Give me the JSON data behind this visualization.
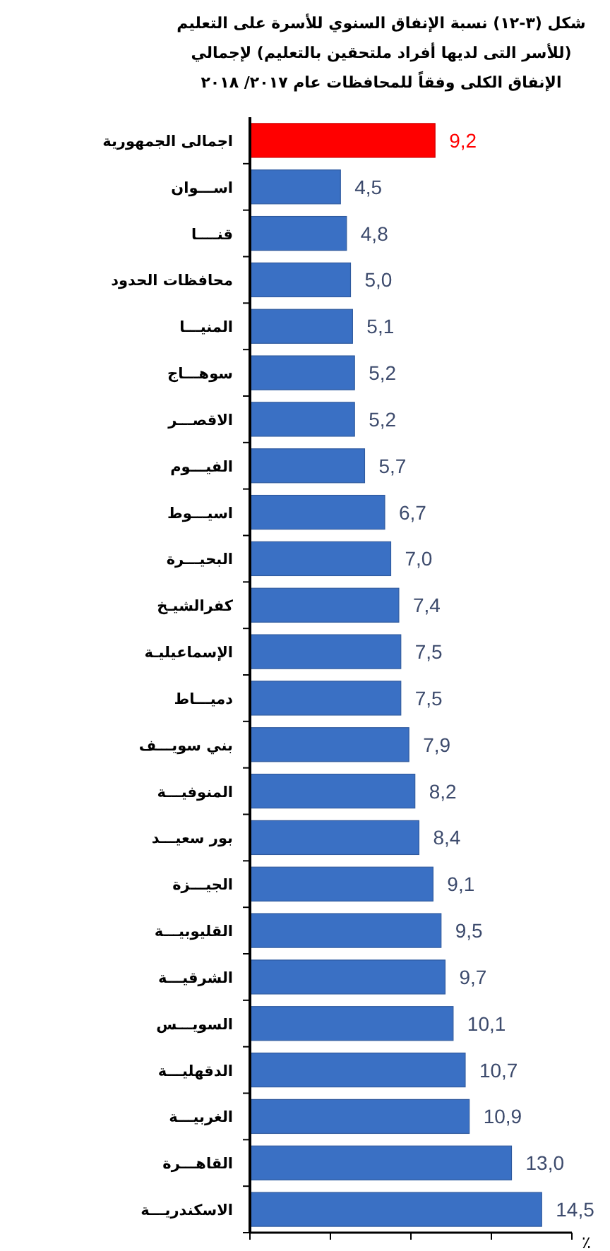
{
  "chart_data": {
    "type": "bar",
    "orientation": "horizontal",
    "title": "شكل (٣-١٢) نسبة الإنفاق السنوي للأسرة على التعليم\n(للأسر التى لديها أفراد ملتحقين بالتعليم) لإجمالي\nالإنفاق الكلى وفقاً للمحافظات  عام ٢٠١٧/ ٢٠١٨",
    "categories": [
      "اجمالى الجمهورية",
      "اســـوان",
      "قنــــا",
      "محافظات الحدود",
      "المنيـــا",
      "سوهـــاج",
      "الاقصـــر",
      "الفيـــوم",
      "اسيـــوط",
      "البحيـــرة",
      "كفرالشيـخ",
      "الإسماعيليـة",
      "دميـــاط",
      "بني سويـــف",
      "المنوفيـــة",
      "بور سعيـــد",
      "الجيـــزة",
      "القليوبيـــة",
      "الشرقيـــة",
      "السويـــس",
      "الدقهليـــة",
      "الغربيـــة",
      "القاهـــرة",
      "الاسكندريـــة"
    ],
    "values": [
      9.2,
      4.5,
      4.8,
      5.0,
      5.1,
      5.2,
      5.2,
      5.7,
      6.7,
      7.0,
      7.4,
      7.5,
      7.5,
      7.9,
      8.2,
      8.4,
      9.1,
      9.5,
      9.7,
      10.1,
      10.7,
      10.9,
      13.0,
      14.5
    ],
    "value_labels": [
      "9,2",
      "4,5",
      "4,8",
      "5,0",
      "5,1",
      "5,2",
      "5,2",
      "5,7",
      "6,7",
      "7,0",
      "7,4",
      "7,5",
      "7,5",
      "7,9",
      "8,2",
      "8,4",
      "9,1",
      "9,5",
      "9,7",
      "10,1",
      "10,7",
      "10,9",
      "13,0",
      "14,5"
    ],
    "colors": [
      "#ff0000",
      "#3a70c4",
      "#3a70c4",
      "#3a70c4",
      "#3a70c4",
      "#3a70c4",
      "#3a70c4",
      "#3a70c4",
      "#3a70c4",
      "#3a70c4",
      "#3a70c4",
      "#3a70c4",
      "#3a70c4",
      "#3a70c4",
      "#3a70c4",
      "#3a70c4",
      "#3a70c4",
      "#3a70c4",
      "#3a70c4",
      "#3a70c4",
      "#3a70c4",
      "#3a70c4",
      "#3a70c4",
      "#3a70c4"
    ],
    "xlim": [
      0,
      16
    ],
    "xticks": [
      {
        "value": 0,
        "label": null
      },
      {
        "value": 4,
        "label": null
      },
      {
        "value": 8,
        "label": null
      },
      {
        "value": 12,
        "label": null
      },
      {
        "value": 16,
        "label": null
      }
    ],
    "xlabel": "٪",
    "tick_labels": "y"
  }
}
